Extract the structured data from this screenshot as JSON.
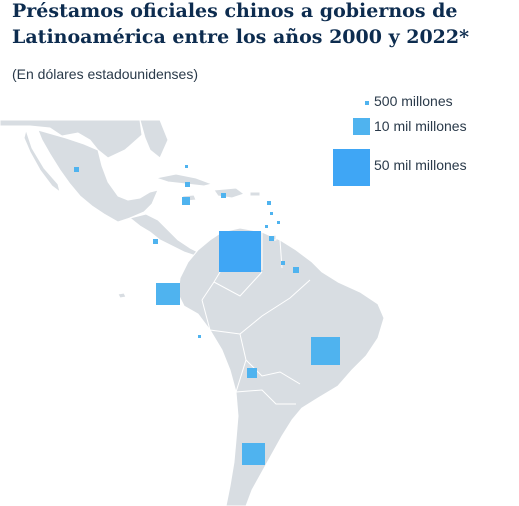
{
  "title": "Préstamos oficiales chinos a gobiernos de Latinoamérica entre los años 2000 y 2022*",
  "subtitle": "(En dólares estadounidenses)",
  "legend": [
    {
      "label": "500 millones"
    },
    {
      "label": "10 mil millones"
    },
    {
      "label": "50 mil millones"
    }
  ],
  "colors": {
    "land": "#d8dde2",
    "land_stroke": "#ffffff",
    "marker_small": "#4fb3ef",
    "marker_large": "#3fa6f5"
  }
}
